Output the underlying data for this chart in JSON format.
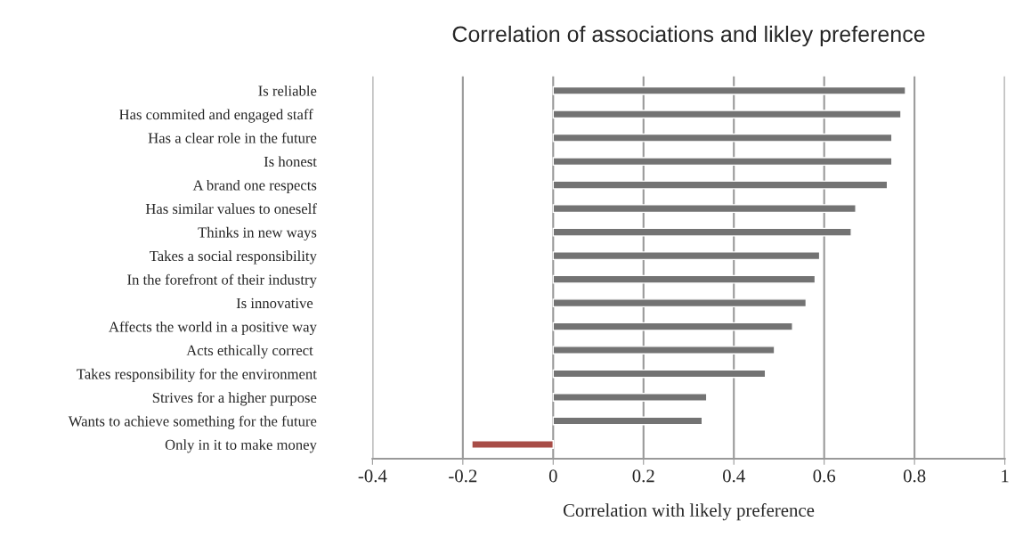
{
  "chart_data": {
    "type": "bar",
    "orientation": "horizontal",
    "title": "Correlation of associations and likley preference",
    "xlabel": "Correlation with likely preference",
    "categories": [
      "Is reliable",
      "Has commited and engaged staff ",
      "Has a clear role in the future",
      "Is honest",
      "A brand one respects",
      "Has similar values to oneself",
      "Thinks in new ways",
      "Takes a social responsibility",
      "In the forefront of their industry",
      "Is innovative ",
      "Affects the world in a positive way",
      "Acts ethically correct ",
      "Takes responsibility for the environment",
      "Strives for a higher purpose",
      "Wants to achieve something for the future",
      "Only in it to make money"
    ],
    "values": [
      0.78,
      0.77,
      0.75,
      0.75,
      0.74,
      0.67,
      0.66,
      0.59,
      0.58,
      0.56,
      0.53,
      0.49,
      0.47,
      0.34,
      0.33,
      -0.18
    ],
    "colors": [
      "#737373",
      "#737373",
      "#737373",
      "#737373",
      "#737373",
      "#737373",
      "#737373",
      "#737373",
      "#737373",
      "#737373",
      "#737373",
      "#737373",
      "#737373",
      "#737373",
      "#737373",
      "#a84d47"
    ],
    "xlim": [
      -0.4,
      1
    ],
    "xticks": [
      -0.4,
      -0.2,
      0,
      0.2,
      0.4,
      0.6,
      0.8,
      1
    ],
    "grid": "x"
  }
}
